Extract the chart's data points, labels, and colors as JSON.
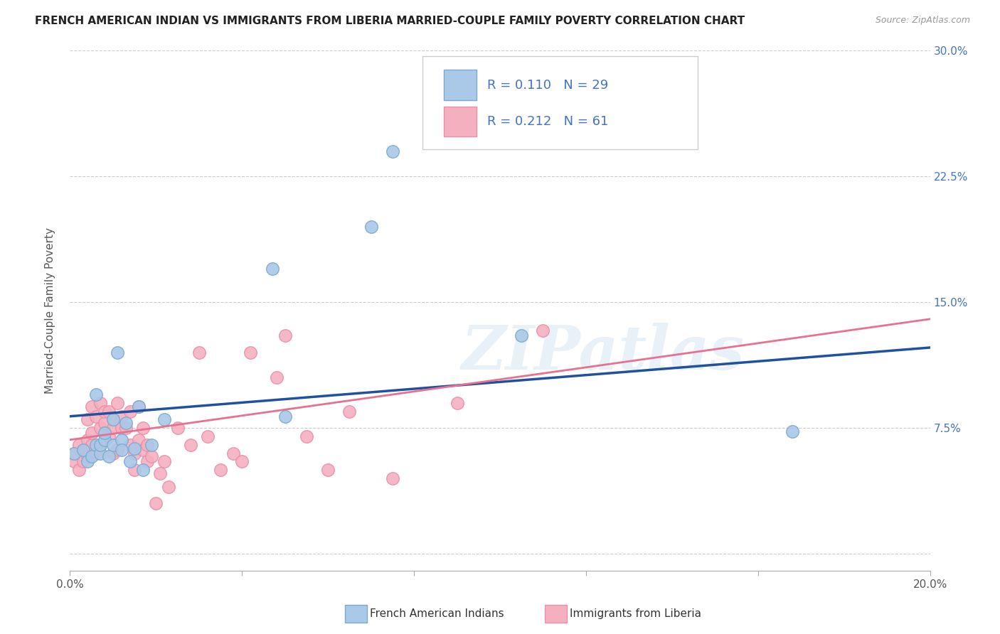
{
  "title": "FRENCH AMERICAN INDIAN VS IMMIGRANTS FROM LIBERIA MARRIED-COUPLE FAMILY POVERTY CORRELATION CHART",
  "source": "Source: ZipAtlas.com",
  "ylabel": "Married-Couple Family Poverty",
  "x_min": 0.0,
  "x_max": 0.2,
  "y_min": -0.01,
  "y_max": 0.3,
  "x_ticks": [
    0.0,
    0.04,
    0.08,
    0.12,
    0.16,
    0.2
  ],
  "y_ticks": [
    0.0,
    0.075,
    0.15,
    0.225,
    0.3
  ],
  "y_tick_labels_right": [
    "",
    "7.5%",
    "15.0%",
    "22.5%",
    "30.0%"
  ],
  "legend_R1": "0.110",
  "legend_N1": "29",
  "legend_R2": "0.212",
  "legend_N2": "61",
  "color_blue_fill": "#aac8e8",
  "color_pink_fill": "#f5b0c0",
  "color_blue_edge": "#7aaad0",
  "color_pink_edge": "#e890a8",
  "color_blue_text": "#4472c4",
  "color_pink_text": "#4472c4",
  "line_blue_color": "#2050a0",
  "line_pink_color": "#e87090",
  "watermark": "ZIPatlas",
  "blue_scatter_x": [
    0.001,
    0.003,
    0.004,
    0.005,
    0.006,
    0.006,
    0.007,
    0.007,
    0.008,
    0.008,
    0.009,
    0.01,
    0.01,
    0.011,
    0.012,
    0.012,
    0.013,
    0.014,
    0.015,
    0.016,
    0.017,
    0.019,
    0.022,
    0.047,
    0.05,
    0.07,
    0.075,
    0.105,
    0.168
  ],
  "blue_scatter_y": [
    0.06,
    0.062,
    0.055,
    0.058,
    0.065,
    0.095,
    0.06,
    0.065,
    0.068,
    0.072,
    0.058,
    0.065,
    0.08,
    0.12,
    0.068,
    0.062,
    0.078,
    0.055,
    0.063,
    0.088,
    0.05,
    0.065,
    0.08,
    0.17,
    0.082,
    0.195,
    0.24,
    0.13,
    0.073
  ],
  "pink_scatter_x": [
    0.001,
    0.001,
    0.002,
    0.002,
    0.003,
    0.003,
    0.004,
    0.004,
    0.004,
    0.005,
    0.005,
    0.005,
    0.006,
    0.006,
    0.007,
    0.007,
    0.007,
    0.008,
    0.008,
    0.009,
    0.009,
    0.01,
    0.01,
    0.01,
    0.011,
    0.011,
    0.012,
    0.012,
    0.013,
    0.014,
    0.014,
    0.015,
    0.015,
    0.016,
    0.016,
    0.017,
    0.017,
    0.018,
    0.018,
    0.019,
    0.02,
    0.021,
    0.022,
    0.023,
    0.025,
    0.028,
    0.03,
    0.032,
    0.035,
    0.038,
    0.04,
    0.042,
    0.048,
    0.05,
    0.055,
    0.06,
    0.065,
    0.075,
    0.09,
    0.11,
    0.118
  ],
  "pink_scatter_y": [
    0.055,
    0.06,
    0.05,
    0.065,
    0.055,
    0.062,
    0.058,
    0.068,
    0.08,
    0.065,
    0.072,
    0.088,
    0.06,
    0.082,
    0.075,
    0.065,
    0.09,
    0.078,
    0.085,
    0.07,
    0.085,
    0.06,
    0.075,
    0.08,
    0.09,
    0.062,
    0.075,
    0.082,
    0.075,
    0.065,
    0.085,
    0.06,
    0.05,
    0.068,
    0.088,
    0.075,
    0.062,
    0.055,
    0.065,
    0.058,
    0.03,
    0.048,
    0.055,
    0.04,
    0.075,
    0.065,
    0.12,
    0.07,
    0.05,
    0.06,
    0.055,
    0.12,
    0.105,
    0.13,
    0.07,
    0.05,
    0.085,
    0.045,
    0.09,
    0.133,
    0.285
  ],
  "blue_trend_x0": 0.0,
  "blue_trend_x1": 0.2,
  "blue_trend_y0": 0.082,
  "blue_trend_y1": 0.123,
  "pink_trend_x0": 0.0,
  "pink_trend_x1": 0.2,
  "pink_trend_y0": 0.068,
  "pink_trend_y1": 0.14
}
